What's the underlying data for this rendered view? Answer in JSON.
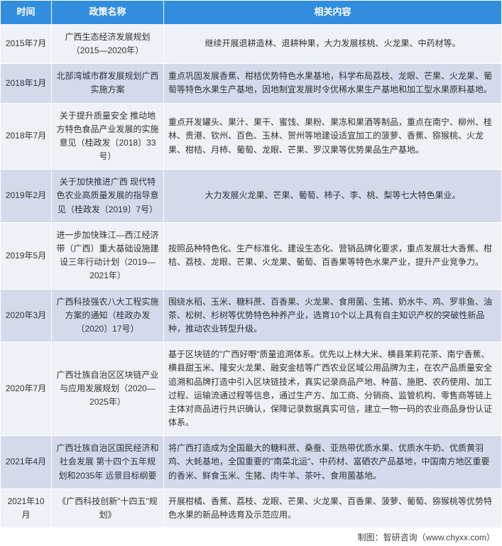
{
  "headers": {
    "time": "时间",
    "name": "政策名称",
    "content": "相关内容"
  },
  "rows": [
    {
      "time": "2015年7月",
      "name": "广西生态经济发展规划（2015—2020年）",
      "content": "继续开展退耕造林、退耕种果，大力发展核桃、火龙果、中药材等。",
      "contentCenter": true
    },
    {
      "time": "2018年1月",
      "name": "北部湾城市群发展规划广西实施方案",
      "content": "重点巩固发展香蕉、柑桔优势特色水果基地，科学布局荔枝、龙眼、芒果、火龙果、葡萄等特色水果生产基地，因地制宜发展时令优稀水果生产基地和加工型水果原料基地。"
    },
    {
      "time": "2018年7月",
      "name": "关于提升质量安全 推动地方特色食品产业发展的实施意见（桂政发〔2018〕33号）",
      "content": "重点开发罐头、果汁、果干、蜜饯、果粉、果冻和果酒等制品，重点在南宁、柳州、桂林、贵港、钦州、百色、玉林、贺州等地建设适宜加工的菠萝、香蕉、猕猴桃、火龙果、柑桔、月柿、葡萄、龙眼、芒果、罗汉果等优势果品生产基地。"
    },
    {
      "time": "2019年2月",
      "name": "关于加快推进广西 现代特色农业高质量发展的指导意见（桂政发〔2019〕7号）",
      "content": "大力发展火龙果、芒果、葡萄、柿子、李、桃、梨等七大特色果业。",
      "contentCenter": true
    },
    {
      "time": "2019年5月",
      "name": "进一步加快珠江—西江经济带（广西）重大基础设施建设三年行动计划（2019—2021年）",
      "content": "按照品种特色化、生产标准化、建设生态化、营销品牌化要求，重点发展壮大香蕉、柑桔、荔枝、龙眼、芒果、火龙果、葡萄、百香果等特色水果产业，提升产业竞争力。"
    },
    {
      "time": "2020年3月",
      "name": "广西科技强农八大工程实施方案的通知（桂政办发〔2020〕17号）",
      "content": "围绕水稻、玉米、糖料蔗、百香果、火龙果、食用菌、生猪、奶水牛、鸡、罗非鱼、油茶、松树、杉树等优势特色种养产业，选育10个以上具有自主知识产权的突破性新品种，推动农业转型升级。"
    },
    {
      "time": "2020年7月",
      "name": "广西壮族自治区区块链产业与应用发展规划（2020—2025年）",
      "content": "基于区块链的\"广西好嘢\"质量追溯体系。优先以上林大米、横县茉莉花茶、南宁香蕉、横县甜玉米、隆安火龙果、融安金桔等广西农业区域公用品牌为主，在农产品质量安全追溯和品牌打造中引入区块链技术，真实记录商品产地、种苗、施肥、农药使用、加工过程、运输流通过程等信息，通过生产方、加工商、分销商、监管机构、零售商等链上主体对商品进行共识确认，保障记录数据真实可信，建立一物一码的农业商品身份认证体系。"
    },
    {
      "time": "2021年4月",
      "name": "广西壮族自治区国民经济和社会发展 第十四个五年规划和2035年 远景目标纲要",
      "content": "将广西打造成为全国最大的糖料蔗、桑蚕、亚热带优质水果、优质水牛奶、优质黄羽鸡、大蚝基地，全国重要的\"南菜北运\"、中药材、富硒农产品基地，中国南方地区重要的香米、鲜食玉米、生猪、肉牛羊、茶叶、食用菌基地。"
    },
    {
      "time": "2021年10月",
      "name": "《广西科技创新\"十四五\"规划》",
      "content": "开展柑橘、香蕉、荔枝、龙眼、芒果、火龙果、百香果、菠萝、葡萄、猕猴桃等优势特色水果的新品种选育及示范应用。"
    }
  ],
  "source": "制图：智研咨询（www.chyxx.com）"
}
